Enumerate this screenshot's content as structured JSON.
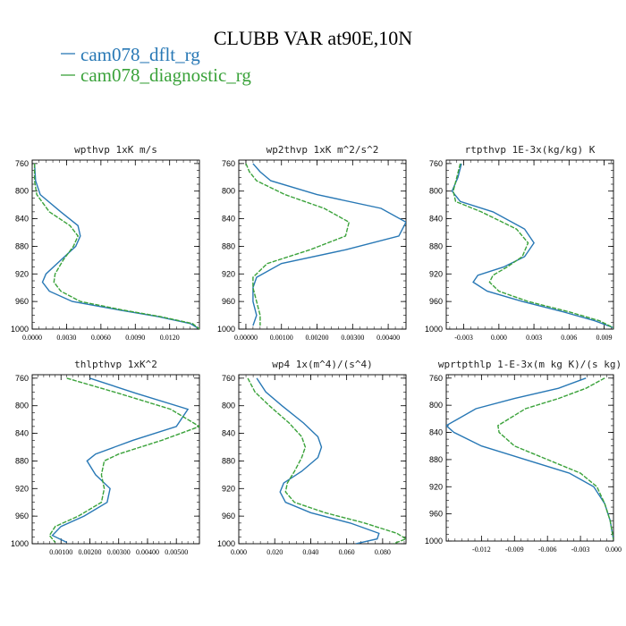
{
  "colors": {
    "blue": "#2878b5",
    "green": "#3aa23a"
  },
  "chart_data": {
    "title": "CLUBB VAR at90E,10N",
    "type": "line",
    "series_names": [
      "cam078_dflt_rg",
      "cam078_diagnostic_rg"
    ],
    "y_tick_labels": [
      "760",
      "800",
      "840",
      "880",
      "920",
      "960",
      "1000"
    ],
    "panels": [
      {
        "title": "wpthvp   1xK m/s",
        "xlim": [
          0,
          0.0146
        ],
        "ylim": [
          1000,
          755
        ],
        "xticks": [
          0,
          0.003,
          0.006,
          0.009,
          0.012
        ],
        "xtick_labels": [
          "0.0000",
          "0.0030",
          "0.0060",
          "0.0090",
          "0.0120"
        ],
        "series": [
          {
            "x": [
              0.0002,
              0.0003,
              0.0007,
              0.0025,
              0.004,
              0.0042,
              0.0038,
              0.0025,
              0.0012,
              0.0009,
              0.0015,
              0.0035,
              0.0075,
              0.011,
              0.0138,
              0.0146
            ],
            "y": [
              760,
              785,
              805,
              830,
              850,
              865,
              880,
              900,
              920,
              932,
              945,
              960,
              972,
              982,
              992,
              1000
            ]
          },
          {
            "x": [
              0.0002,
              0.0002,
              0.0004,
              0.0015,
              0.0033,
              0.004,
              0.0036,
              0.0027,
              0.002,
              0.0019,
              0.0025,
              0.0042,
              0.0078,
              0.0112,
              0.014,
              0.0146
            ],
            "y": [
              760,
              785,
              805,
              830,
              850,
              865,
              880,
              900,
              920,
              932,
              945,
              960,
              972,
              982,
              992,
              1000
            ]
          }
        ]
      },
      {
        "title": "wp2thvp   1xK m^2/s^2",
        "xlim": [
          -0.0002,
          0.0045
        ],
        "ylim": [
          1000,
          755
        ],
        "xticks": [
          0,
          0.001,
          0.002,
          0.003,
          0.004
        ],
        "xtick_labels": [
          "0.00000",
          "0.00100",
          "0.00200",
          "0.00300",
          "0.00400"
        ],
        "series": [
          {
            "x": [
              0.0002,
              0.0004,
              0.0007,
              0.002,
              0.0038,
              0.0045,
              0.0043,
              0.0028,
              0.001,
              0.0003,
              0.0002,
              0.0002,
              0.0003,
              0.0002
            ],
            "y": [
              760,
              772,
              785,
              805,
              825,
              845,
              865,
              885,
              905,
              925,
              940,
              960,
              980,
              995
            ]
          },
          {
            "x": [
              0.0,
              0.0001,
              0.0003,
              0.0011,
              0.0022,
              0.0029,
              0.0028,
              0.0018,
              0.0006,
              0.0002,
              0.0002,
              0.0003,
              0.0004,
              0.0004
            ],
            "y": [
              760,
              772,
              785,
              805,
              825,
              845,
              865,
              885,
              905,
              925,
              940,
              960,
              980,
              995
            ]
          }
        ]
      },
      {
        "title": "rtpthvp   1E-3x(kg/kg) K",
        "xlim": [
          -0.0045,
          0.0098
        ],
        "ylim": [
          1000,
          755
        ],
        "xticks": [
          -0.003,
          0,
          0.003,
          0.006,
          0.009
        ],
        "xtick_labels": [
          "-0.003",
          "0.000",
          "0.003",
          "0.006",
          "0.009"
        ],
        "series": [
          {
            "x": [
              -0.0032,
              -0.0035,
              -0.004,
              -0.0033,
              -0.0005,
              0.0022,
              0.003,
              0.0022,
              0.0004,
              -0.0018,
              -0.0022,
              -0.001,
              0.002,
              0.0055,
              0.0082,
              0.0098
            ],
            "y": [
              760,
              780,
              800,
              815,
              830,
              855,
              875,
              895,
              910,
              922,
              932,
              945,
              960,
              975,
              988,
              998
            ]
          },
          {
            "x": [
              -0.0033,
              -0.0036,
              -0.0039,
              -0.0037,
              -0.0015,
              0.0015,
              0.0025,
              0.002,
              0.0007,
              -0.0005,
              -0.0008,
              0.0,
              0.0025,
              0.006,
              0.0086,
              0.0098
            ],
            "y": [
              760,
              780,
              800,
              815,
              830,
              855,
              875,
              895,
              910,
              922,
              932,
              945,
              960,
              975,
              988,
              998
            ]
          }
        ]
      },
      {
        "title": "thlpthvp   1xK^2",
        "xlim": [
          0,
          0.0058
        ],
        "ylim": [
          1000,
          755
        ],
        "xticks": [
          0.001,
          0.002,
          0.003,
          0.004,
          0.005
        ],
        "xtick_labels": [
          "0.00100",
          "0.00200",
          "0.00300",
          "0.00400",
          "0.00500"
        ],
        "series": [
          {
            "x": [
              0.002,
              0.0036,
              0.0054,
              0.005,
              0.0035,
              0.0022,
              0.0019,
              0.0022,
              0.0027,
              0.0026,
              0.0018,
              0.001,
              0.0007,
              0.0012
            ],
            "y": [
              760,
              782,
              805,
              830,
              850,
              870,
              880,
              900,
              920,
              940,
              960,
              975,
              988,
              998
            ]
          },
          {
            "x": [
              0.0012,
              0.003,
              0.0048,
              0.0058,
              0.0045,
              0.003,
              0.0025,
              0.0024,
              0.0025,
              0.0024,
              0.0016,
              0.0008,
              0.0006,
              0.0008
            ],
            "y": [
              760,
              782,
              805,
              830,
              850,
              870,
              880,
              900,
              920,
              940,
              960,
              975,
              988,
              998
            ]
          }
        ]
      },
      {
        "title": "wp4   1x(m^4)/(s^4)",
        "xlim": [
          0,
          0.093
        ],
        "ylim": [
          1000,
          755
        ],
        "xticks": [
          0,
          0.02,
          0.04,
          0.06,
          0.08
        ],
        "xtick_labels": [
          "0.000",
          "0.020",
          "0.040",
          "0.060",
          "0.080"
        ],
        "series": [
          {
            "x": [
              0.01,
              0.015,
              0.024,
              0.036,
              0.044,
              0.046,
              0.044,
              0.035,
              0.025,
              0.023,
              0.026,
              0.04,
              0.062,
              0.078,
              0.077,
              0.065
            ],
            "y": [
              760,
              780,
              800,
              825,
              845,
              860,
              875,
              895,
              912,
              925,
              940,
              955,
              970,
              985,
              993,
              1000
            ]
          },
          {
            "x": [
              0.005,
              0.009,
              0.017,
              0.028,
              0.035,
              0.037,
              0.035,
              0.031,
              0.027,
              0.026,
              0.031,
              0.048,
              0.07,
              0.088,
              0.093,
              0.086
            ],
            "y": [
              760,
              780,
              800,
              825,
              845,
              860,
              875,
              895,
              912,
              925,
              940,
              955,
              970,
              985,
              993,
              1000
            ]
          }
        ]
      },
      {
        "title": "wprtpthlp   1-E-3x(m kg K)/(s kg)",
        "xlim": [
          -0.0152,
          0
        ],
        "ylim": [
          1000,
          755
        ],
        "xticks": [
          -0.012,
          -0.009,
          -0.006,
          -0.003,
          0
        ],
        "xtick_labels": [
          "-0.012",
          "-0.009",
          "-0.006",
          "-0.003",
          "0.000"
        ],
        "series": [
          {
            "x": [
              -0.0025,
              -0.005,
              -0.009,
              -0.0125,
              -0.0152,
              -0.0145,
              -0.012,
              -0.008,
              -0.004,
              -0.0018,
              -0.0008,
              -0.0003,
              0.0
            ],
            "y": [
              760,
              775,
              790,
              805,
              830,
              840,
              860,
              880,
              900,
              920,
              945,
              970,
              998
            ]
          },
          {
            "x": [
              -0.0008,
              -0.0025,
              -0.005,
              -0.008,
              -0.0105,
              -0.0104,
              -0.009,
              -0.006,
              -0.003,
              -0.0015,
              -0.0008,
              -0.0003,
              0.0
            ],
            "y": [
              760,
              775,
              790,
              805,
              830,
              840,
              860,
              880,
              900,
              920,
              945,
              970,
              998
            ]
          }
        ]
      }
    ]
  }
}
